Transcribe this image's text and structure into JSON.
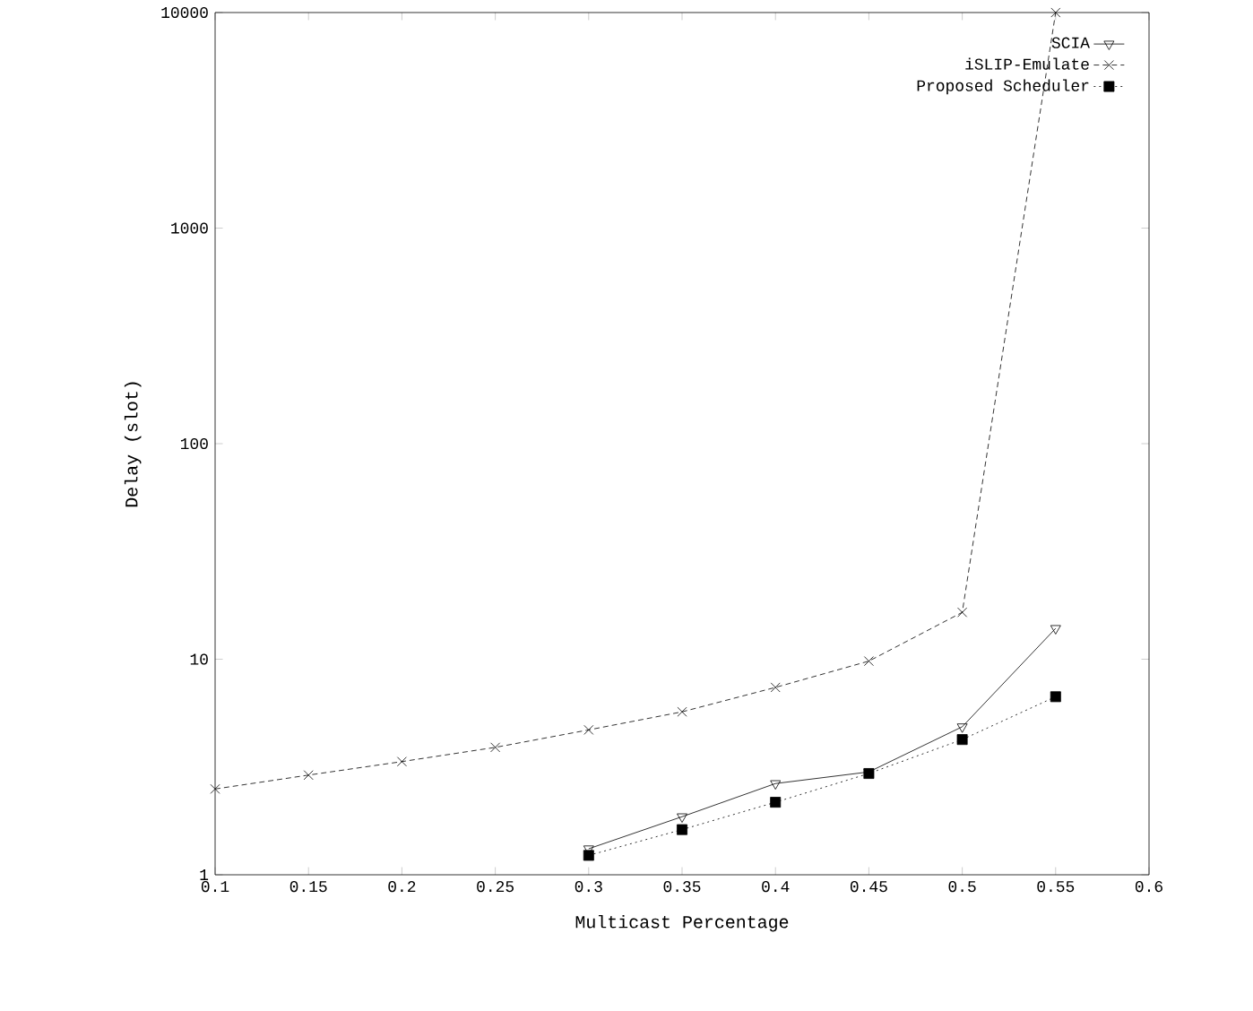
{
  "chart_data": {
    "type": "line",
    "xlabel": "Multicast Percentage",
    "ylabel": "Delay (slot)",
    "log": "y",
    "x": [
      0.1,
      0.15,
      0.2,
      0.25,
      0.3,
      0.35,
      0.4,
      0.45,
      0.5,
      0.55
    ],
    "xlim": [
      0.1,
      0.6
    ],
    "xticks": [
      0.1,
      0.15,
      0.2,
      0.25,
      0.3,
      0.35,
      0.4,
      0.45,
      0.5,
      0.55,
      0.6
    ],
    "ylim": [
      1,
      10000
    ],
    "yticks": [
      1,
      10,
      100,
      1000,
      10000
    ],
    "legend": "top right",
    "grid": false,
    "series": [
      {
        "name": "SCIA",
        "color": "#000000",
        "marker": "triangle",
        "line_style": "solid",
        "values": [
          null,
          null,
          null,
          null,
          1.32,
          1.86,
          2.65,
          3.0,
          4.86,
          13.9
        ]
      },
      {
        "name": "iSLIP-Emulate",
        "color": "#000000",
        "marker": "cross",
        "line_style": "dashed",
        "values": [
          2.5,
          2.9,
          3.35,
          3.9,
          4.7,
          5.7,
          7.4,
          9.8,
          16.5,
          10000
        ]
      },
      {
        "name": "Proposed Scheduler",
        "color": "#000000",
        "marker": "square",
        "line_style": "dotted",
        "values": [
          null,
          null,
          null,
          null,
          1.23,
          1.62,
          2.17,
          2.95,
          4.24,
          6.7
        ]
      }
    ]
  }
}
